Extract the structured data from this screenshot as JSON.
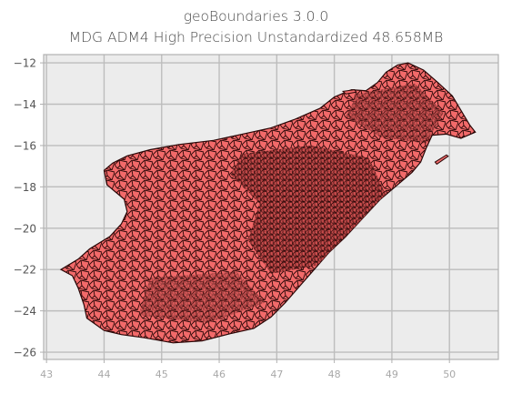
{
  "title": {
    "line1": "geoBoundaries 3.0.0",
    "line2": "MDG ADM4 High Precision Unstandardized 48.658MB"
  },
  "colors": {
    "plot_background": "#ececec",
    "grid": "#bdbdbd",
    "axis_frame": "#b0b0b0",
    "tick_label": "#555555",
    "x_tick_label": "#a8a8a8",
    "polygon_fill": "#f26a6a",
    "polygon_edge": "#2a0707",
    "dense_edge": "#3a0a0a"
  },
  "chart_data": {
    "type": "map",
    "country": "MDG",
    "level": "ADM4",
    "xlim": [
      42.95,
      50.85
    ],
    "ylim": [
      -26.35,
      -11.6
    ],
    "x_ticks": [
      43,
      44,
      45,
      46,
      47,
      48,
      49,
      50
    ],
    "y_ticks": [
      -12,
      -14,
      -16,
      -18,
      -20,
      -22,
      -24,
      -26
    ],
    "grid": true,
    "outline": [
      [
        49.28,
        -12.0
      ],
      [
        49.55,
        -12.35
      ],
      [
        49.8,
        -12.95
      ],
      [
        50.05,
        -13.6
      ],
      [
        50.2,
        -14.3
      ],
      [
        50.35,
        -15.0
      ],
      [
        50.45,
        -15.35
      ],
      [
        50.2,
        -15.65
      ],
      [
        49.95,
        -15.45
      ],
      [
        49.7,
        -15.5
      ],
      [
        49.6,
        -16.1
      ],
      [
        49.5,
        -16.8
      ],
      [
        49.35,
        -17.3
      ],
      [
        49.1,
        -17.9
      ],
      [
        48.8,
        -18.6
      ],
      [
        48.5,
        -19.5
      ],
      [
        48.2,
        -20.4
      ],
      [
        47.9,
        -21.2
      ],
      [
        47.65,
        -22.0
      ],
      [
        47.4,
        -22.8
      ],
      [
        47.15,
        -23.6
      ],
      [
        46.9,
        -24.3
      ],
      [
        46.6,
        -24.85
      ],
      [
        46.2,
        -25.1
      ],
      [
        45.7,
        -25.45
      ],
      [
        45.2,
        -25.55
      ],
      [
        44.7,
        -25.3
      ],
      [
        44.3,
        -25.15
      ],
      [
        44.0,
        -24.95
      ],
      [
        43.7,
        -24.35
      ],
      [
        43.65,
        -23.7
      ],
      [
        43.55,
        -22.9
      ],
      [
        43.45,
        -22.3
      ],
      [
        43.25,
        -22.0
      ],
      [
        43.55,
        -21.5
      ],
      [
        43.75,
        -21.0
      ],
      [
        44.1,
        -20.4
      ],
      [
        44.3,
        -19.8
      ],
      [
        44.4,
        -19.2
      ],
      [
        44.35,
        -18.6
      ],
      [
        44.05,
        -17.9
      ],
      [
        44.0,
        -17.2
      ],
      [
        44.15,
        -16.85
      ],
      [
        44.4,
        -16.5
      ],
      [
        44.8,
        -16.2
      ],
      [
        45.3,
        -15.95
      ],
      [
        45.9,
        -15.75
      ],
      [
        46.4,
        -15.45
      ],
      [
        46.9,
        -15.15
      ],
      [
        47.3,
        -14.75
      ],
      [
        47.75,
        -14.2
      ],
      [
        48.0,
        -13.65
      ],
      [
        48.3,
        -13.3
      ],
      [
        48.55,
        -13.35
      ],
      [
        48.75,
        -12.95
      ],
      [
        48.9,
        -12.45
      ],
      [
        49.1,
        -12.1
      ],
      [
        49.28,
        -12.0
      ]
    ],
    "islands": [
      [
        [
          49.75,
          -16.8
        ],
        [
          49.95,
          -16.45
        ],
        [
          49.98,
          -16.52
        ],
        [
          49.78,
          -16.9
        ]
      ],
      [
        [
          48.15,
          -13.38
        ],
        [
          48.35,
          -13.3
        ],
        [
          48.38,
          -13.42
        ],
        [
          48.2,
          -13.5
        ]
      ]
    ]
  }
}
